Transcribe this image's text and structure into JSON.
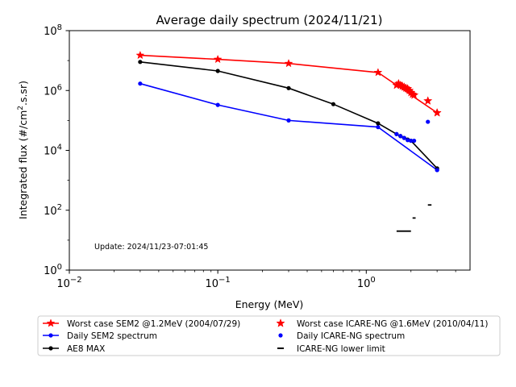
{
  "chart_data": {
    "type": "line",
    "title": "Average daily spectrum (2024/11/21)",
    "xlabel": "Energy (MeV)",
    "ylabel_main": "Integrated flux (#/cm",
    "ylabel_sup": "2",
    "ylabel_tail": ".s.sr)",
    "xscale": "log",
    "yscale": "log",
    "xlim": [
      0.01,
      5
    ],
    "ylim": [
      1,
      100000000
    ],
    "x_ticks": [
      {
        "value": 0.01,
        "base": "10",
        "exp": "−2"
      },
      {
        "value": 0.1,
        "base": "10",
        "exp": "−1"
      },
      {
        "value": 1,
        "base": "10",
        "exp": "0"
      }
    ],
    "y_ticks": [
      {
        "value": 1,
        "base": "10",
        "exp": "0"
      },
      {
        "value": 100,
        "base": "10",
        "exp": "2"
      },
      {
        "value": 10000,
        "base": "10",
        "exp": "4"
      },
      {
        "value": 1000000,
        "base": "10",
        "exp": "6"
      },
      {
        "value": 100000000,
        "base": "10",
        "exp": "8"
      }
    ],
    "grid": false,
    "legend_position": "below-plot",
    "annotation": "Update: 2024/11/23-07:01:45",
    "series": [
      {
        "name": "Worst case SEM2 @1.2MeV (2004/07/29)",
        "style": "line",
        "marker": "star",
        "color": "#ff0000",
        "x": [
          0.03,
          0.1,
          0.3,
          1.2,
          3.0
        ],
        "y": [
          15000000,
          11000000,
          8000000,
          4000000,
          180000
        ]
      },
      {
        "name": "Daily SEM2 spectrum",
        "style": "line",
        "marker": "dot",
        "color": "#0000ff",
        "x": [
          0.03,
          0.1,
          0.3,
          1.2,
          3.0
        ],
        "y": [
          1700000,
          330000,
          100000,
          60000,
          2200
        ]
      },
      {
        "name": "AE8 MAX",
        "style": "line",
        "marker": "dot",
        "color": "#000000",
        "x": [
          0.03,
          0.1,
          0.3,
          0.6,
          1.2,
          1.6,
          1.7,
          1.8,
          1.9,
          2.0,
          3.0
        ],
        "y": [
          9000000,
          4500000,
          1200000,
          350000,
          80000,
          35000,
          30000,
          26000,
          23000,
          21000,
          2500
        ]
      },
      {
        "name": "Worst case ICARE-NG @1.6MeV (2010/04/11)",
        "style": "scatter",
        "marker": "star",
        "color": "#ff0000",
        "x": [
          1.6,
          1.65,
          1.7,
          1.75,
          1.8,
          1.85,
          1.9,
          1.95,
          2.0,
          2.05,
          2.1,
          2.6,
          3.0
        ],
        "y": [
          1500000,
          1700000,
          1500000,
          1400000,
          1300000,
          1200000,
          1150000,
          1000000,
          850000,
          750000,
          700000,
          450000,
          180000
        ]
      },
      {
        "name": "Daily ICARE-NG spectrum",
        "style": "scatter",
        "marker": "dot",
        "color": "#0000ff",
        "x": [
          1.6,
          1.7,
          1.8,
          1.9,
          2.0,
          2.1,
          2.6,
          3.0
        ],
        "y": [
          35000,
          30000,
          26000,
          22000,
          21000,
          21000,
          90000,
          2200
        ]
      },
      {
        "name": "ICARE-NG lower limit",
        "style": "hlines",
        "marker": "dash",
        "color": "#000000",
        "segments": [
          {
            "x0": 1.6,
            "x1": 2.0,
            "y": 20
          },
          {
            "x0": 2.05,
            "x1": 2.15,
            "y": 55
          },
          {
            "x0": 2.6,
            "x1": 2.75,
            "y": 150
          }
        ]
      }
    ]
  }
}
